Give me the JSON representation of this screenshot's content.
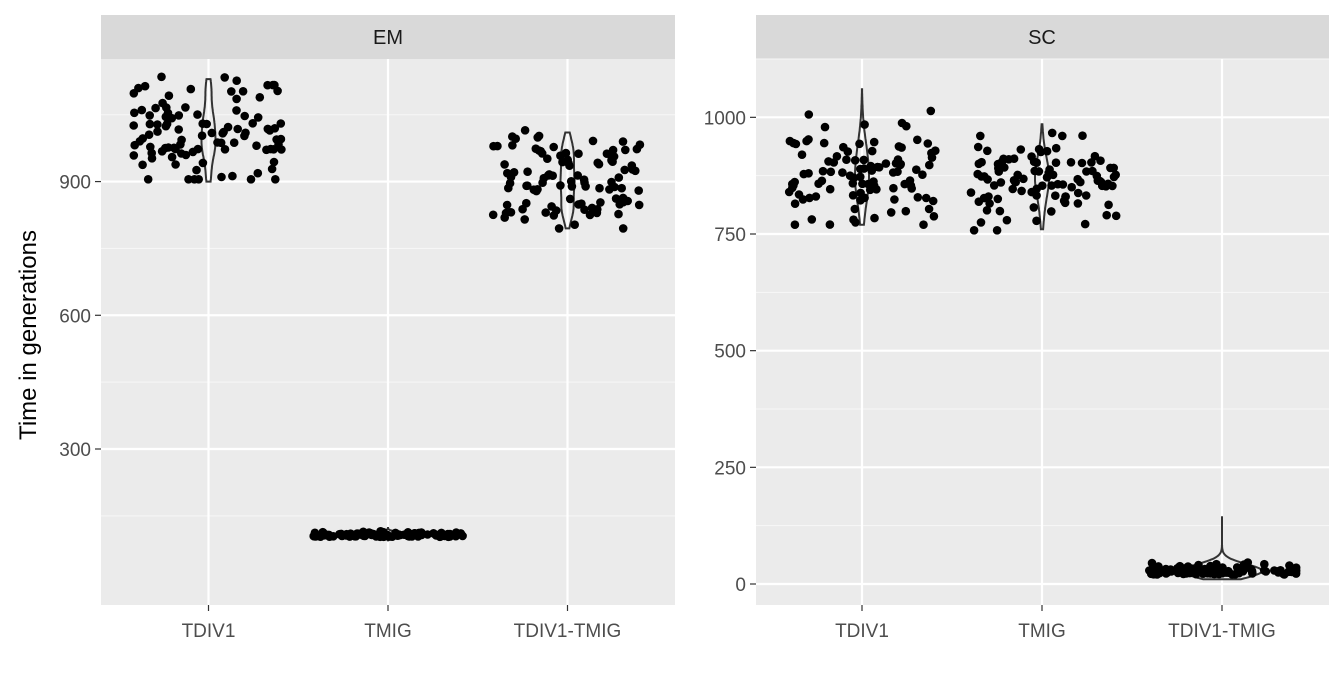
{
  "ylabel": "Time in generations",
  "chart_data": [
    {
      "type": "violin_jitter",
      "panel": "EM",
      "categories": [
        "TDIV1",
        "TMIG",
        "TDIV1-TMIG"
      ],
      "ylim": [
        -50,
        1175
      ],
      "yticks": [
        300,
        600,
        900
      ],
      "ylabel": "Time in generations",
      "series": [
        {
          "category": "TDIV1",
          "min": 900,
          "max": 1130,
          "center": 1015,
          "spread": 65,
          "n": 100,
          "points_min": 905,
          "points_max": 1135
        },
        {
          "category": "TMIG",
          "min": 95,
          "max": 125,
          "center": 105,
          "spread": 7,
          "n": 100,
          "points_min": 97,
          "points_max": 125
        },
        {
          "category": "TDIV1-TMIG",
          "min": 795,
          "max": 1010,
          "center": 900,
          "spread": 55,
          "n": 100,
          "points_min": 795,
          "points_max": 1015
        }
      ]
    },
    {
      "type": "violin_jitter",
      "panel": "SC",
      "categories": [
        "TDIV1",
        "TMIG",
        "TDIV1-TMIG"
      ],
      "ylim": [
        -45,
        1125
      ],
      "yticks": [
        0,
        250,
        500,
        750,
        1000
      ],
      "series": [
        {
          "category": "TDIV1",
          "min": 770,
          "max": 1060,
          "center": 885,
          "spread": 55,
          "n": 100,
          "points_min": 770,
          "points_max": 1060
        },
        {
          "category": "TMIG",
          "min": 760,
          "max": 985,
          "center": 860,
          "spread": 48,
          "n": 100,
          "points_min": 758,
          "points_max": 985
        },
        {
          "category": "TDIV1-TMIG",
          "min": 10,
          "max": 145,
          "center": 25,
          "spread": 15,
          "n": 100,
          "points_min": 8,
          "points_max": 147
        }
      ]
    }
  ]
}
